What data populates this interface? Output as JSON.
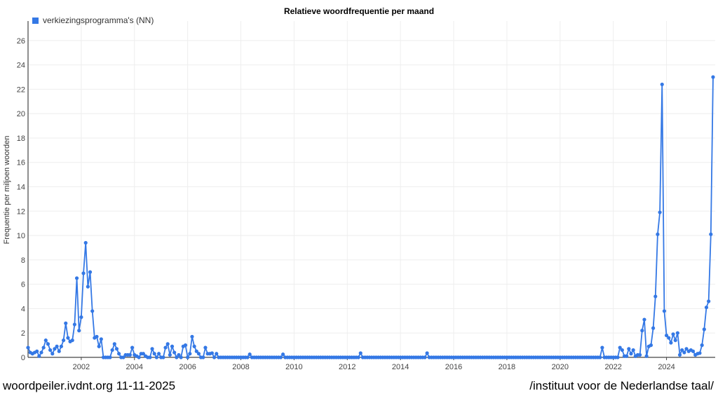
{
  "chart_data": {
    "type": "line",
    "title": "Relatieve woordfrequentie per maand",
    "xlabel": "",
    "ylabel": "Frequentie per miljoen woorden",
    "x_start": "2000-01",
    "x_interval": "month",
    "xlim": [
      2000,
      2025.83
    ],
    "ylim": [
      0,
      27.6
    ],
    "x_ticks": [
      "2002",
      "2004",
      "2006",
      "2008",
      "2010",
      "2012",
      "2014",
      "2016",
      "2018",
      "2020",
      "2022",
      "2024"
    ],
    "y_ticks": [
      "0",
      "2",
      "4",
      "6",
      "8",
      "10",
      "12",
      "14",
      "16",
      "18",
      "20",
      "22",
      "24",
      "26"
    ],
    "grid": true,
    "legend_position": "top-left",
    "series": [
      {
        "name": "verkiezingsprogramma's (NN)",
        "color": "#3478e5",
        "values": [
          0.8,
          0.4,
          0.3,
          0.4,
          0.5,
          0.1,
          0.4,
          0.8,
          1.4,
          1.1,
          0.6,
          0.3,
          0.7,
          0.9,
          0.5,
          0.9,
          1.4,
          2.8,
          1.6,
          1.3,
          1.4,
          2.7,
          6.5,
          2.2,
          3.3,
          6.9,
          9.4,
          5.8,
          7.0,
          3.8,
          1.6,
          1.7,
          0.9,
          1.5,
          0,
          0,
          0,
          0,
          0.6,
          1.1,
          0.7,
          0.3,
          0,
          0,
          0.2,
          0.2,
          0.2,
          0.8,
          0.2,
          0.1,
          0,
          0.3,
          0.3,
          0.1,
          0,
          0,
          0.7,
          0.3,
          0,
          0.3,
          0,
          0,
          0.8,
          1.1,
          0.2,
          0.9,
          0.4,
          0,
          0.2,
          0,
          0.9,
          1.0,
          0,
          0.3,
          1.7,
          0.9,
          0.5,
          0.3,
          0,
          0,
          0.8,
          0.3,
          0.3,
          0.35,
          0,
          0.3,
          0,
          0,
          0,
          0,
          0,
          0,
          0,
          0,
          0,
          0,
          0,
          0,
          0,
          0,
          0.25,
          0,
          0,
          0,
          0,
          0,
          0,
          0,
          0,
          0,
          0,
          0,
          0,
          0,
          0,
          0.25,
          0,
          0,
          0,
          0,
          0,
          0,
          0,
          0,
          0,
          0,
          0,
          0,
          0,
          0,
          0,
          0,
          0,
          0,
          0,
          0,
          0,
          0,
          0,
          0,
          0,
          0,
          0,
          0,
          0,
          0,
          0,
          0,
          0,
          0,
          0.35,
          0,
          0,
          0,
          0,
          0,
          0,
          0,
          0,
          0,
          0,
          0,
          0,
          0,
          0,
          0,
          0,
          0,
          0,
          0,
          0,
          0,
          0,
          0,
          0,
          0,
          0,
          0,
          0,
          0,
          0.35,
          0,
          0,
          0,
          0,
          0,
          0,
          0,
          0,
          0,
          0,
          0,
          0,
          0,
          0,
          0,
          0,
          0,
          0,
          0,
          0,
          0,
          0,
          0,
          0,
          0,
          0,
          0,
          0,
          0,
          0,
          0,
          0,
          0,
          0,
          0,
          0,
          0,
          0,
          0,
          0,
          0,
          0,
          0,
          0,
          0,
          0,
          0,
          0,
          0,
          0,
          0,
          0,
          0,
          0,
          0,
          0,
          0,
          0,
          0,
          0,
          0,
          0,
          0,
          0,
          0,
          0,
          0,
          0,
          0,
          0,
          0,
          0,
          0,
          0,
          0,
          0,
          0,
          0,
          0.8,
          0,
          0,
          0,
          0,
          0,
          0,
          0,
          0.8,
          0.6,
          0.1,
          0.1,
          0.7,
          0.3,
          0.6,
          0.1,
          0.2,
          0.2,
          2.2,
          3.1,
          0.1,
          0.9,
          1.0,
          2.4,
          5.0,
          10.1,
          11.9,
          22.4,
          3.8,
          1.8,
          1.6,
          1.2,
          1.9,
          1.4,
          2.0,
          0.2,
          0.6,
          0.4,
          0.7,
          0.5,
          0.6,
          0.5,
          0.2,
          0.3,
          0.35,
          1.0,
          2.3,
          4.1,
          4.6,
          10.1,
          23.0
        ]
      }
    ]
  },
  "footer": {
    "left": "woordpeiler.ivdnt.org 11-11-2025",
    "right": "/instituut voor de Nederlandse taal/"
  }
}
